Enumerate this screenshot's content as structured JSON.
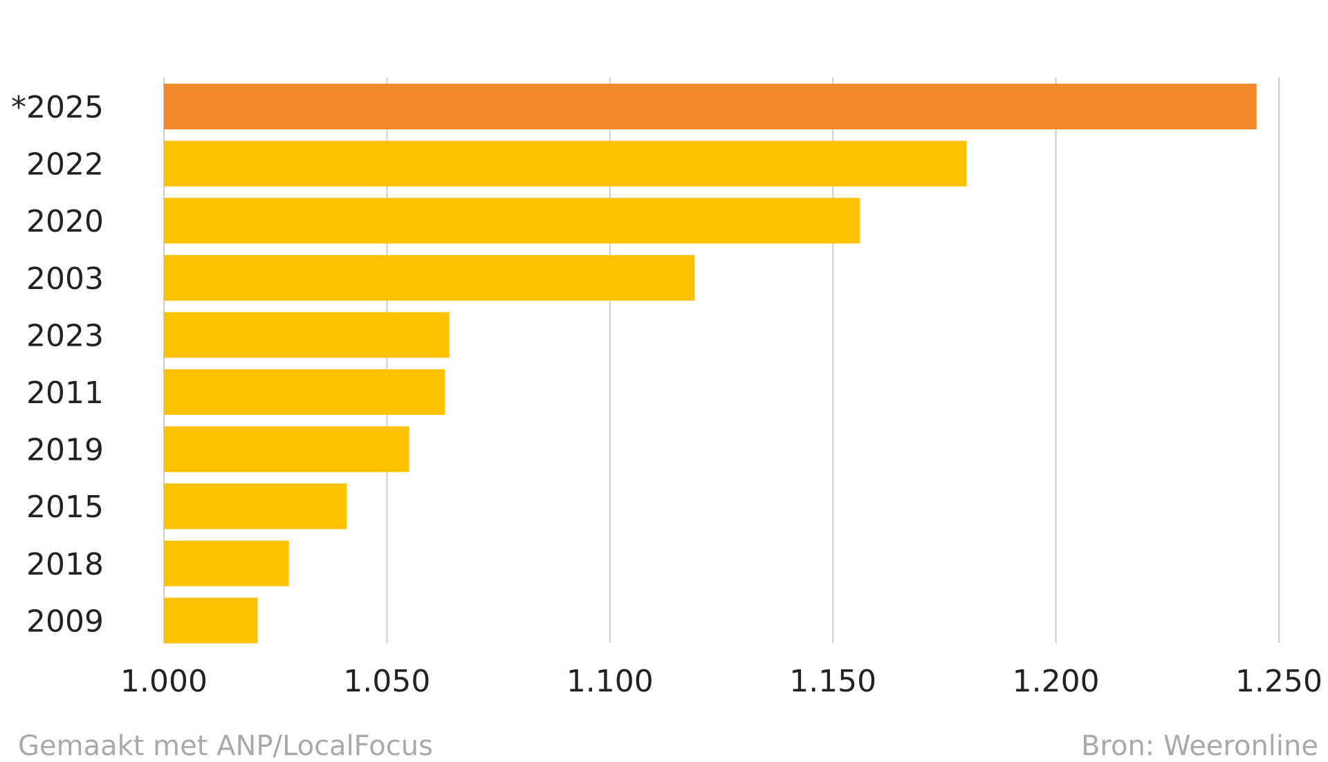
{
  "chart_data": {
    "type": "bar",
    "orientation": "horizontal",
    "categories": [
      "*2025",
      "2022",
      "2020",
      "2003",
      "2023",
      "2011",
      "2019",
      "2015",
      "2018",
      "2009"
    ],
    "values": [
      1245,
      1180,
      1156,
      1119,
      1064,
      1063,
      1055,
      1041,
      1028,
      1021
    ],
    "bar_colors": [
      "#f28a2b",
      "#fcc200",
      "#fcc200",
      "#fcc200",
      "#fcc200",
      "#fcc200",
      "#fcc200",
      "#fcc200",
      "#fcc200",
      "#fcc200"
    ],
    "xlim": [
      1000,
      1250
    ],
    "xticks": [
      1000,
      1050,
      1100,
      1150,
      1200,
      1250
    ],
    "xtick_labels": [
      "1.000",
      "1.050",
      "1.100",
      "1.150",
      "1.200",
      "1.250"
    ],
    "grid": "vertical",
    "gridline_color": "#cccccc"
  },
  "footer": {
    "left": "Gemaakt met ANP/LocalFocus",
    "right": "Bron: Weeronline"
  }
}
